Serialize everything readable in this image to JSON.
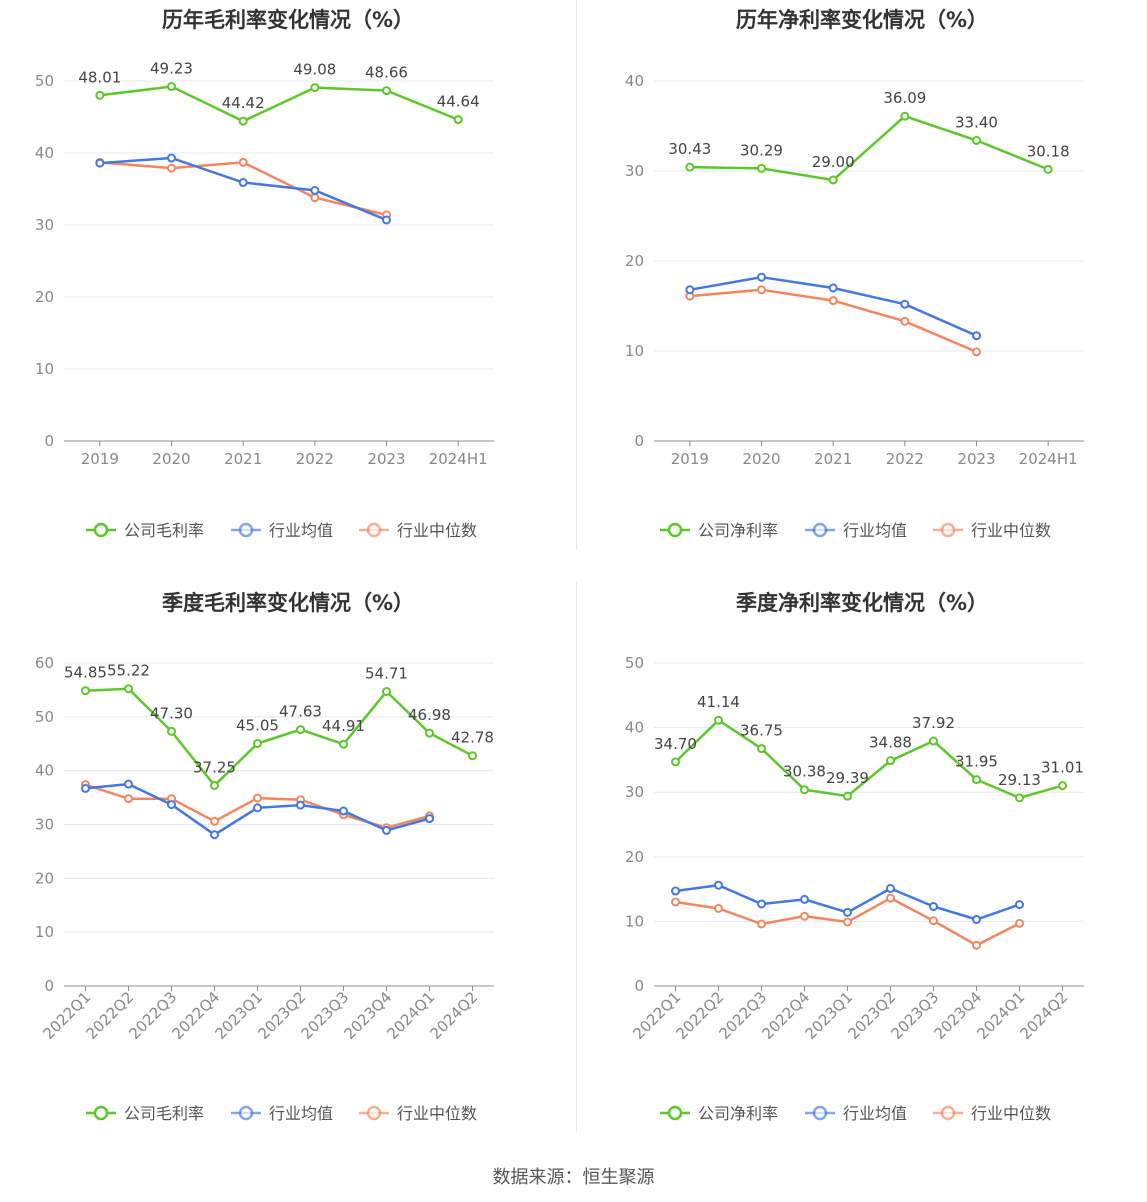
{
  "colors": {
    "company": "#5cc62a",
    "industry_avg": "#4577e0",
    "industry_median": "#f2875f",
    "grid": "#e3e8f2",
    "axis_text": "#888888",
    "label_text": "#444444"
  },
  "source": "数据来源：恒生聚源",
  "chart_data": [
    {
      "type": "line",
      "title": "历年毛利率变化情况（%）",
      "categories": [
        "2019",
        "2020",
        "2021",
        "2022",
        "2023",
        "2024H1"
      ],
      "ylim": [
        0,
        50
      ],
      "yticks": [
        0,
        10,
        20,
        30,
        40,
        50
      ],
      "rotate_x": false,
      "series": [
        {
          "name": "公司毛利率",
          "key": "company",
          "labeled": true,
          "values": [
            48.01,
            49.23,
            44.42,
            49.08,
            48.66,
            44.64
          ]
        },
        {
          "name": "行业均值",
          "key": "industry_avg",
          "labeled": false,
          "values": [
            38.6,
            39.3,
            35.9,
            34.8,
            30.7,
            null
          ]
        },
        {
          "name": "行业中位数",
          "key": "industry_median",
          "labeled": false,
          "values": [
            38.7,
            37.9,
            38.7,
            33.8,
            31.4,
            null
          ]
        }
      ],
      "legend": "bottom"
    },
    {
      "type": "line",
      "title": "历年净利率变化情况（%）",
      "categories": [
        "2019",
        "2020",
        "2021",
        "2022",
        "2023",
        "2024H1"
      ],
      "ylim": [
        0,
        40
      ],
      "yticks": [
        0,
        10,
        20,
        30,
        40
      ],
      "rotate_x": false,
      "series": [
        {
          "name": "公司净利率",
          "key": "company",
          "labeled": true,
          "values": [
            30.43,
            30.29,
            29.0,
            36.09,
            33.4,
            30.18
          ]
        },
        {
          "name": "行业均值",
          "key": "industry_avg",
          "labeled": false,
          "values": [
            16.8,
            18.2,
            17.0,
            15.2,
            11.7,
            null
          ]
        },
        {
          "name": "行业中位数",
          "key": "industry_median",
          "labeled": false,
          "values": [
            16.1,
            16.8,
            15.6,
            13.3,
            9.9,
            null
          ]
        }
      ],
      "value_labels": [
        "30.43",
        "30.29",
        "29.00",
        "36.09",
        "33.40",
        "30.18"
      ],
      "legend": "bottom"
    },
    {
      "type": "line",
      "title": "季度毛利率变化情况（%）",
      "categories": [
        "2022Q1",
        "2022Q2",
        "2022Q3",
        "2022Q4",
        "2023Q1",
        "2023Q2",
        "2023Q3",
        "2023Q4",
        "2024Q1",
        "2024Q2"
      ],
      "ylim": [
        0,
        60
      ],
      "yticks": [
        0,
        10,
        20,
        30,
        40,
        50,
        60
      ],
      "rotate_x": true,
      "series": [
        {
          "name": "公司毛利率",
          "key": "company",
          "labeled": true,
          "values": [
            54.85,
            55.22,
            47.3,
            37.25,
            45.05,
            47.63,
            44.91,
            54.71,
            46.98,
            42.78
          ]
        },
        {
          "name": "行业均值",
          "key": "industry_avg",
          "labeled": false,
          "values": [
            36.7,
            37.5,
            33.7,
            28.1,
            33.1,
            33.6,
            32.5,
            28.9,
            31.1,
            null
          ]
        },
        {
          "name": "行业中位数",
          "key": "industry_median",
          "labeled": false,
          "values": [
            37.4,
            34.8,
            34.8,
            30.6,
            34.9,
            34.6,
            31.8,
            29.4,
            31.6,
            null
          ]
        }
      ],
      "value_labels": [
        "54.85",
        "55.22",
        "47.30",
        "37.25",
        "45.05",
        "47.63",
        "44.91",
        "54.71",
        "46.98",
        "42.78"
      ],
      "legend": "bottom"
    },
    {
      "type": "line",
      "title": "季度净利率变化情况（%）",
      "categories": [
        "2022Q1",
        "2022Q2",
        "2022Q3",
        "2022Q4",
        "2023Q1",
        "2023Q2",
        "2023Q3",
        "2023Q4",
        "2024Q1",
        "2024Q2"
      ],
      "ylim": [
        0,
        50
      ],
      "yticks": [
        0,
        10,
        20,
        30,
        40,
        50
      ],
      "rotate_x": true,
      "series": [
        {
          "name": "公司净利率",
          "key": "company",
          "labeled": true,
          "values": [
            34.7,
            41.14,
            36.75,
            30.38,
            29.39,
            34.88,
            37.92,
            31.95,
            29.13,
            31.01
          ]
        },
        {
          "name": "行业均值",
          "key": "industry_avg",
          "labeled": false,
          "values": [
            14.7,
            15.6,
            12.7,
            13.4,
            11.4,
            15.1,
            12.3,
            10.3,
            12.6,
            null
          ]
        },
        {
          "name": "行业中位数",
          "key": "industry_median",
          "labeled": false,
          "values": [
            13.0,
            12.0,
            9.6,
            10.8,
            9.9,
            13.6,
            10.1,
            6.3,
            9.7,
            null
          ]
        }
      ],
      "value_labels": [
        "34.70",
        "41.14",
        "36.75",
        "30.38",
        "29.39",
        "34.88",
        "37.92",
        "31.95",
        "29.13",
        "31.01"
      ],
      "legend": "bottom"
    }
  ]
}
